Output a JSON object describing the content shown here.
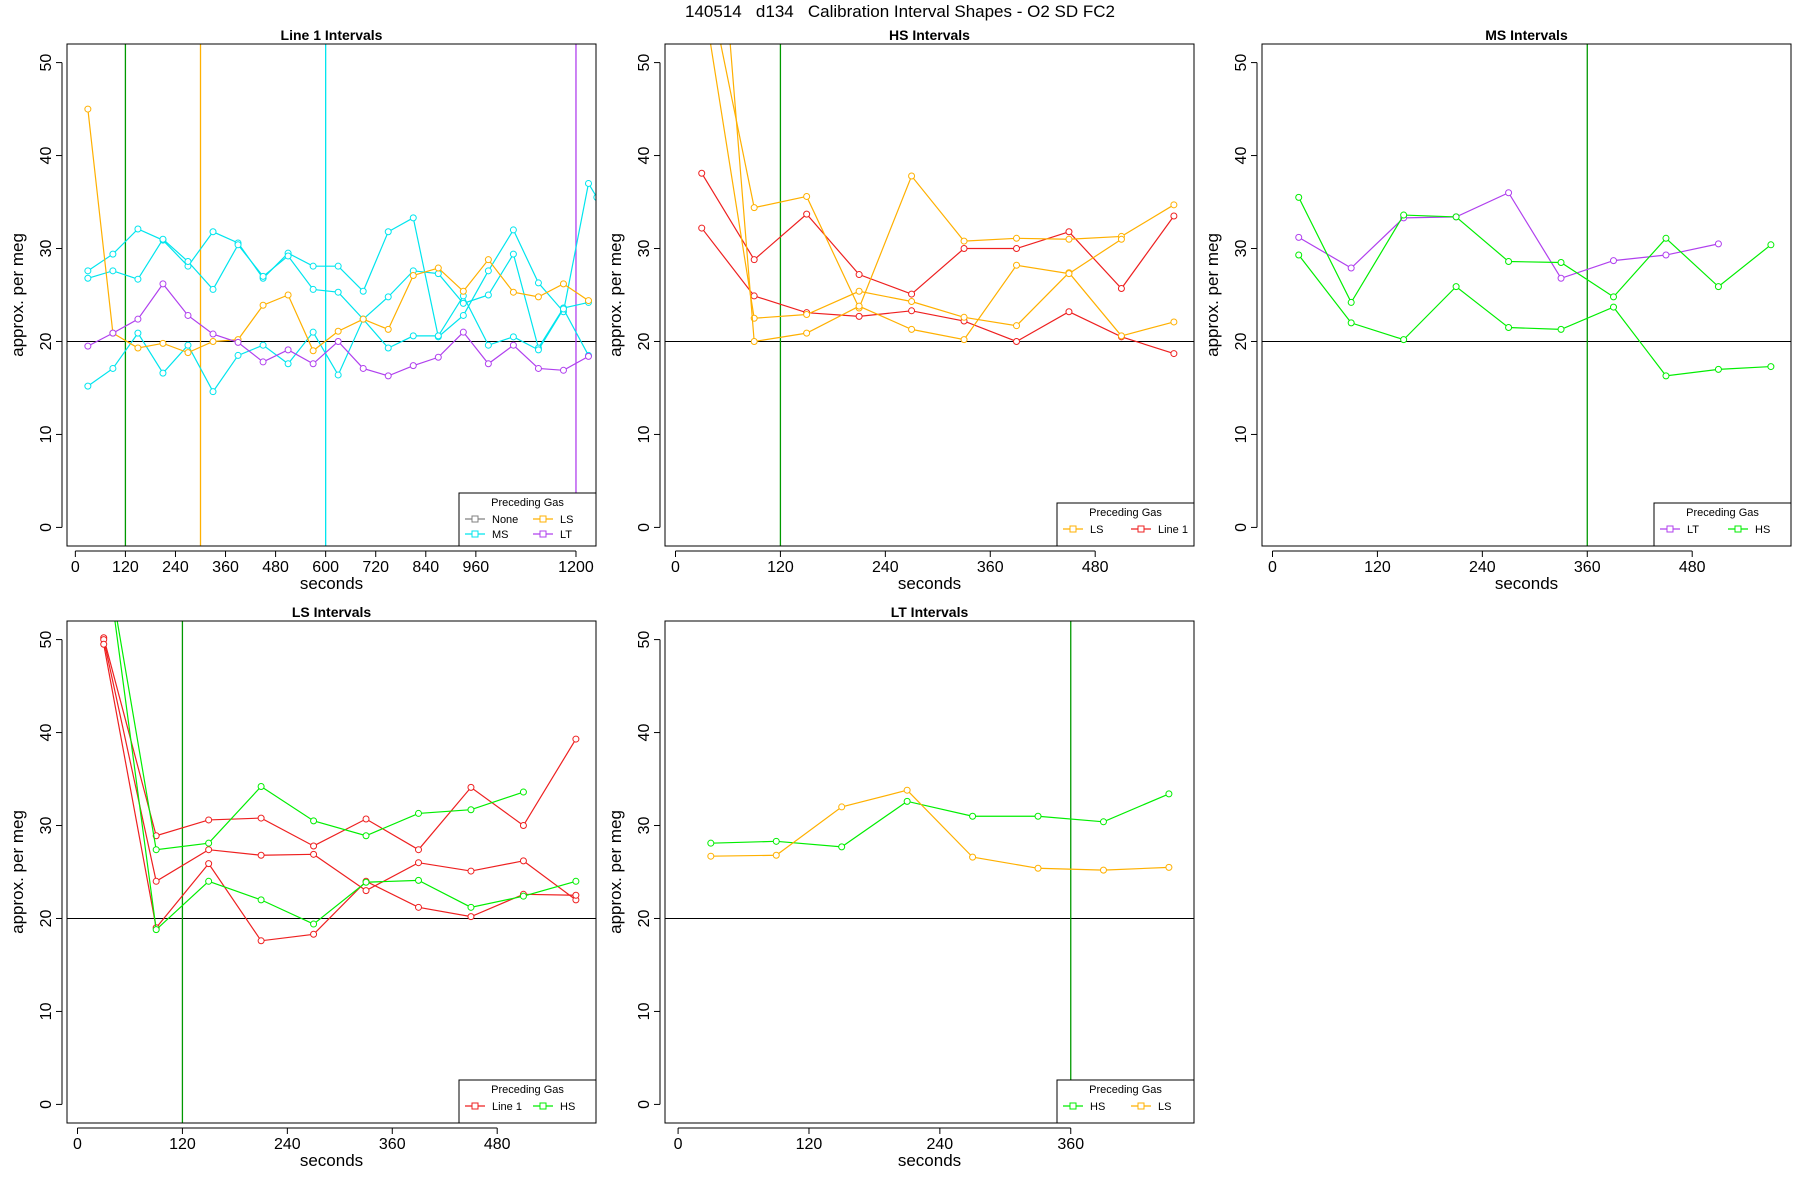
{
  "page_title": "140514   d134   Calibration Interval Shapes - O2 SD FC2",
  "legend_heading": "Preceding Gas",
  "colors": {
    "None": "#808080",
    "MS": "#00e5ee",
    "LS": "#ffb000",
    "LT": "#b040ee",
    "HS": "#00ee00",
    "Line 1": "#ee2020",
    "refline": "#000000",
    "vgreen": "#009900"
  },
  "chart_data": [
    {
      "type": "line",
      "title": "Line 1 Intervals",
      "xlabel": "seconds",
      "ylabel": "approx. per meg",
      "xlim": [
        -20,
        1248
      ],
      "ylim": [
        -2,
        52
      ],
      "xticks": [
        0,
        120,
        240,
        360,
        480,
        600,
        720,
        840,
        960,
        1200
      ],
      "yticks": [
        0,
        10,
        20,
        30,
        40,
        50
      ],
      "hline": 20,
      "vlines": [
        {
          "x": 120,
          "color": "#009900"
        },
        {
          "x": 300,
          "color": "#ffb000"
        },
        {
          "x": 600,
          "color": "#00e5ee"
        },
        {
          "x": 1200,
          "color": "#b040ee"
        }
      ],
      "legend": [
        "None",
        "LS",
        "MS",
        "LT"
      ],
      "series": [
        {
          "name": "MS",
          "x": [
            30,
            90,
            150,
            210,
            270,
            330,
            390,
            450,
            510,
            570,
            630,
            690,
            750,
            810,
            870,
            930,
            990,
            1050,
            1110,
            1170,
            1230,
            1250
          ],
          "y": [
            27.6,
            29.4,
            32.1,
            30.9,
            28.1,
            31.8,
            30.6,
            26.8,
            29.5,
            28.1,
            28.1,
            25.4,
            31.8,
            33.3,
            20.5,
            22.8,
            27.6,
            32.0,
            26.3,
            23.2,
            37.0,
            35.5
          ]
        },
        {
          "name": "MS",
          "x": [
            30,
            90,
            150,
            210,
            270,
            330,
            390,
            450,
            510,
            570,
            630,
            690,
            750,
            810,
            870,
            930,
            990,
            1050,
            1110,
            1170,
            1230
          ],
          "y": [
            26.8,
            27.6,
            26.7,
            31.0,
            28.6,
            25.6,
            30.4,
            27.0,
            29.2,
            25.6,
            25.3,
            22.4,
            24.8,
            27.6,
            27.3,
            24.1,
            25.0,
            29.4,
            19.3,
            23.6,
            24.2
          ]
        },
        {
          "name": "MS",
          "x": [
            30,
            90,
            150,
            210,
            270,
            330,
            390,
            450,
            510,
            570,
            630,
            690,
            750,
            810,
            870,
            930,
            990,
            1050,
            1110,
            1170,
            1230
          ],
          "y": [
            15.2,
            17.1,
            20.9,
            16.6,
            19.6,
            14.6,
            18.5,
            19.6,
            17.6,
            21.0,
            16.4,
            22.4,
            19.3,
            20.6,
            20.6,
            24.9,
            19.6,
            20.5,
            19.1,
            23.5,
            18.5
          ]
        },
        {
          "name": "LS",
          "x": [
            30,
            90,
            150,
            210,
            270,
            330,
            390,
            450,
            510,
            570,
            630,
            690,
            750,
            810,
            870,
            930,
            990,
            1050,
            1110,
            1170,
            1230
          ],
          "y": [
            45.0,
            20.9,
            19.3,
            19.8,
            18.8,
            20.0,
            20.2,
            23.9,
            25.0,
            19.0,
            21.1,
            22.4,
            21.3,
            27.1,
            27.9,
            25.4,
            28.8,
            25.3,
            24.8,
            26.2,
            24.4
          ]
        },
        {
          "name": "LT",
          "x": [
            30,
            90,
            150,
            210,
            270,
            330,
            390,
            450,
            510,
            570,
            630,
            690,
            750,
            810,
            870,
            930,
            990,
            1050,
            1110,
            1170,
            1230
          ],
          "y": [
            19.5,
            20.9,
            22.4,
            26.2,
            22.8,
            20.8,
            19.9,
            17.8,
            19.1,
            17.6,
            20.0,
            17.1,
            16.3,
            17.4,
            18.3,
            21.0,
            17.6,
            19.6,
            17.1,
            16.9,
            18.4
          ]
        }
      ]
    },
    {
      "type": "line",
      "title": "HS Intervals",
      "xlabel": "seconds",
      "ylabel": "approx. per meg",
      "xlim": [
        -12,
        593
      ],
      "ylim": [
        -2,
        52
      ],
      "xticks": [
        0,
        120,
        240,
        360,
        480
      ],
      "yticks": [
        0,
        10,
        20,
        30,
        40,
        50
      ],
      "hline": 20,
      "vlines": [
        {
          "x": 120,
          "color": "#009900"
        }
      ],
      "legend": [
        "LS",
        "Line 1"
      ],
      "series": [
        {
          "name": "Line 1",
          "x": [
            30,
            90,
            150,
            210,
            270,
            330,
            390,
            450,
            510,
            570
          ],
          "y": [
            38.1,
            28.8,
            33.7,
            27.2,
            25.1,
            30.0,
            30.0,
            31.8,
            25.7,
            33.5
          ]
        },
        {
          "name": "Line 1",
          "x": [
            30,
            90,
            150,
            210,
            270,
            330,
            390,
            450,
            510,
            570
          ],
          "y": [
            32.2,
            24.9,
            23.1,
            22.7,
            23.3,
            22.2,
            20.0,
            23.2,
            20.5,
            18.7
          ]
        },
        {
          "name": "LS",
          "x": [
            30,
            90,
            150,
            210,
            270,
            330,
            390,
            450,
            510,
            570
          ],
          "y": [
            62.0,
            34.4,
            35.6,
            23.6,
            37.8,
            30.8,
            31.1,
            31.0,
            31.3,
            34.7
          ]
        },
        {
          "name": "LS",
          "x": [
            30,
            90,
            150,
            210,
            270,
            330,
            390,
            450,
            510,
            570
          ],
          "y": [
            58.0,
            22.5,
            22.9,
            25.4,
            24.3,
            22.6,
            21.7,
            27.4,
            20.6,
            22.1
          ]
        },
        {
          "name": "LS",
          "x": [
            60,
            90,
            150,
            210,
            270,
            330,
            390,
            450,
            510
          ],
          "y": [
            55.0,
            20.0,
            20.9,
            23.8,
            21.3,
            20.2,
            28.2,
            27.3,
            31.0
          ]
        }
      ]
    },
    {
      "type": "line",
      "title": "MS Intervals",
      "xlabel": "seconds",
      "ylabel": "approx. per meg",
      "xlim": [
        -12,
        593
      ],
      "ylim": [
        -2,
        52
      ],
      "xticks": [
        0,
        120,
        240,
        360,
        480
      ],
      "yticks": [
        0,
        10,
        20,
        30,
        40,
        50
      ],
      "hline": 20,
      "vlines": [
        {
          "x": 360,
          "color": "#009900"
        }
      ],
      "legend": [
        "LT",
        "HS"
      ],
      "series": [
        {
          "name": "LT",
          "x": [
            30,
            90,
            150,
            210,
            270,
            330,
            390,
            450,
            510
          ],
          "y": [
            31.2,
            27.9,
            33.3,
            33.4,
            36.0,
            26.8,
            28.7,
            29.3,
            30.5
          ]
        },
        {
          "name": "HS",
          "x": [
            30,
            90,
            150,
            210,
            270,
            330,
            390,
            450,
            510,
            570
          ],
          "y": [
            35.5,
            24.2,
            33.6,
            33.4,
            28.6,
            28.5,
            24.8,
            31.1,
            25.9,
            30.4
          ]
        },
        {
          "name": "HS",
          "x": [
            30,
            90,
            150,
            210,
            270,
            330,
            390,
            450,
            510,
            570
          ],
          "y": [
            29.3,
            22.0,
            20.2,
            25.9,
            21.5,
            21.3,
            23.7,
            16.3,
            17.0,
            17.3
          ]
        }
      ]
    },
    {
      "type": "line",
      "title": "LS Intervals",
      "xlabel": "seconds",
      "ylabel": "approx. per meg",
      "xlim": [
        -12,
        593
      ],
      "ylim": [
        -2,
        52
      ],
      "xticks": [
        0,
        120,
        240,
        360,
        480
      ],
      "yticks": [
        0,
        10,
        20,
        30,
        40,
        50
      ],
      "hline": 20,
      "vlines": [
        {
          "x": 120,
          "color": "#009900"
        }
      ],
      "legend": [
        "Line 1",
        "HS"
      ],
      "series": [
        {
          "name": "Line 1",
          "x": [
            30,
            90,
            150,
            210,
            270,
            330,
            390,
            450,
            510,
            570
          ],
          "y": [
            50.2,
            28.9,
            30.6,
            30.8,
            27.8,
            30.7,
            27.4,
            34.1,
            30.0,
            39.3
          ]
        },
        {
          "name": "Line 1",
          "x": [
            30,
            90,
            150,
            210,
            270,
            330,
            390,
            450,
            510,
            570
          ],
          "y": [
            50.0,
            24.0,
            27.4,
            26.8,
            26.9,
            23.0,
            26.0,
            25.1,
            26.2,
            22.0
          ]
        },
        {
          "name": "Line 1",
          "x": [
            30,
            90,
            150,
            210,
            270,
            330,
            390,
            450,
            510,
            570
          ],
          "y": [
            49.5,
            19.0,
            25.9,
            17.6,
            18.3,
            24.0,
            21.2,
            20.2,
            22.6,
            22.5
          ]
        },
        {
          "name": "HS",
          "x": [
            40,
            90,
            150,
            210,
            270,
            330,
            390,
            450,
            510
          ],
          "y": [
            55.0,
            27.4,
            28.1,
            34.2,
            30.5,
            28.9,
            31.3,
            31.7,
            33.6
          ]
        },
        {
          "name": "HS",
          "x": [
            40,
            90,
            150,
            210,
            270,
            330,
            390,
            450,
            510,
            570
          ],
          "y": [
            54.0,
            18.8,
            24.0,
            22.0,
            19.4,
            23.9,
            24.1,
            21.2,
            22.4,
            24.0
          ]
        }
      ]
    },
    {
      "type": "line",
      "title": "LT Intervals",
      "xlabel": "seconds",
      "ylabel": "approx. per meg",
      "xlim": [
        -12,
        473
      ],
      "ylim": [
        -2,
        52
      ],
      "xticks": [
        0,
        120,
        240,
        360
      ],
      "yticks": [
        0,
        10,
        20,
        30,
        40,
        50
      ],
      "hline": 20,
      "vlines": [
        {
          "x": 360,
          "color": "#009900"
        }
      ],
      "legend": [
        "HS",
        "LS"
      ],
      "series": [
        {
          "name": "HS",
          "x": [
            30,
            90,
            150,
            210,
            270,
            330,
            390,
            450
          ],
          "y": [
            28.1,
            28.3,
            27.7,
            32.6,
            31.0,
            31.0,
            30.4,
            33.4
          ]
        },
        {
          "name": "LS",
          "x": [
            30,
            90,
            150,
            210,
            270,
            330,
            390,
            450
          ],
          "y": [
            26.7,
            26.8,
            32.0,
            33.8,
            26.6,
            25.4,
            25.2,
            25.5
          ]
        }
      ]
    }
  ]
}
